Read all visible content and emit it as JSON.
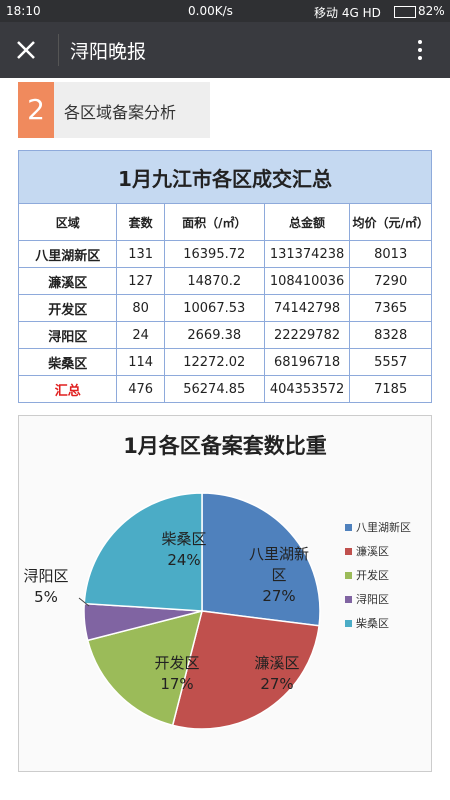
{
  "status_bar": {
    "time": "18:10",
    "speed": "0.00K/s",
    "network": "移动 4G HD",
    "battery": "82%"
  },
  "app_bar": {
    "title": "浔阳晚报"
  },
  "section": {
    "number": "2",
    "title": "各区域备案分析"
  },
  "table": {
    "title": "1月九江市各区成交汇总",
    "headers": [
      "区域",
      "套数",
      "面积（/㎡）",
      "总金额",
      "均价（元/㎡）"
    ],
    "rows": [
      [
        "八里湖新区",
        131,
        16395.72,
        131374238,
        8013
      ],
      [
        "濂溪区",
        127,
        14870.2,
        108410036,
        7290
      ],
      [
        "开发区",
        80,
        10067.53,
        74142798,
        7365
      ],
      [
        "浔阳区",
        24,
        2669.38,
        22229782,
        8328
      ],
      [
        "柴桑区",
        114,
        12272.02,
        68196718,
        5557
      ],
      [
        "汇总",
        476,
        56274.85,
        404353572,
        7185
      ]
    ]
  },
  "chart_data": {
    "type": "pie",
    "title": "1月各区备案套数比重",
    "categories": [
      "八里湖新区",
      "濂溪区",
      "开发区",
      "浔阳区",
      "柴桑区"
    ],
    "values": [
      27,
      27,
      17,
      5,
      24
    ],
    "value_labels": [
      "27%",
      "27%",
      "17%",
      "5%",
      "24%"
    ],
    "colors": [
      "#4f81bd",
      "#c0504d",
      "#9bbb59",
      "#8064a2",
      "#4bacc6"
    ],
    "legend": "right"
  }
}
